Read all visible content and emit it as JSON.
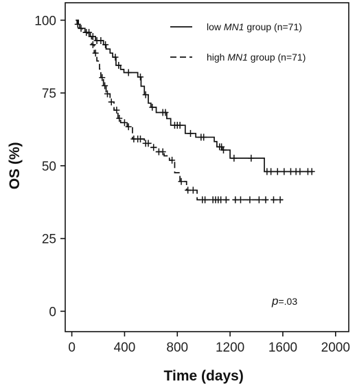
{
  "chart_data": {
    "type": "line",
    "xlabel": "Time (days)",
    "ylabel": "OS (%)",
    "xlim": [
      -50,
      2100
    ],
    "ylim": [
      -7,
      106
    ],
    "x_ticks": [
      0,
      400,
      800,
      1200,
      1600,
      2000
    ],
    "x_tick_labels": [
      "0",
      "400",
      "800",
      "1200",
      "1600",
      "2000"
    ],
    "y_ticks": [
      0,
      25,
      50,
      75,
      100
    ],
    "y_tick_labels": [
      "0",
      "25",
      "50",
      "75",
      "100"
    ],
    "legend_position": "top-right",
    "series": [
      {
        "name_prefix": "low ",
        "name_gene": "MN1",
        "name_suffix": " group (n=71)",
        "line_style": "solid",
        "steps": [
          [
            30,
            100
          ],
          [
            40,
            98.6
          ],
          [
            60,
            97.2
          ],
          [
            100,
            95.8
          ],
          [
            140,
            94.4
          ],
          [
            180,
            93.0
          ],
          [
            240,
            91.6
          ],
          [
            260,
            90.1
          ],
          [
            290,
            88.7
          ],
          [
            310,
            87.3
          ],
          [
            335,
            84.5
          ],
          [
            370,
            83.1
          ],
          [
            395,
            82.0
          ],
          [
            500,
            80.5
          ],
          [
            525,
            77.3
          ],
          [
            550,
            74.4
          ],
          [
            580,
            71.5
          ],
          [
            600,
            70.1
          ],
          [
            640,
            68.3
          ],
          [
            720,
            66.2
          ],
          [
            750,
            63.9
          ],
          [
            860,
            61.1
          ],
          [
            940,
            59.8
          ],
          [
            1080,
            58.3
          ],
          [
            1100,
            56.5
          ],
          [
            1140,
            55.4
          ],
          [
            1200,
            52.6
          ],
          [
            1460,
            48.0
          ],
          [
            1830,
            48.0
          ]
        ],
        "censor_x": [
          45,
          70,
          110,
          130,
          160,
          190,
          220,
          255,
          330,
          355,
          430,
          520,
          560,
          610,
          690,
          710,
          780,
          800,
          820,
          900,
          980,
          1000,
          1120,
          1135,
          1150,
          1230,
          1360,
          1480,
          1510,
          1560,
          1610,
          1660,
          1700,
          1730,
          1790,
          1820
        ]
      },
      {
        "name_prefix": "high ",
        "name_gene": "MN1",
        "name_suffix": " group (n=71)",
        "line_style": "dashed",
        "steps": [
          [
            30,
            100
          ],
          [
            50,
            97.2
          ],
          [
            80,
            95.8
          ],
          [
            120,
            94.4
          ],
          [
            150,
            91.6
          ],
          [
            170,
            88.7
          ],
          [
            190,
            86.0
          ],
          [
            210,
            83.2
          ],
          [
            220,
            80.3
          ],
          [
            240,
            77.5
          ],
          [
            260,
            74.7
          ],
          [
            290,
            71.9
          ],
          [
            320,
            69.1
          ],
          [
            350,
            66.3
          ],
          [
            370,
            64.8
          ],
          [
            420,
            63.4
          ],
          [
            460,
            59.2
          ],
          [
            550,
            57.7
          ],
          [
            600,
            56.3
          ],
          [
            640,
            54.8
          ],
          [
            700,
            53.4
          ],
          [
            740,
            51.9
          ],
          [
            780,
            47.6
          ],
          [
            820,
            44.6
          ],
          [
            870,
            41.6
          ],
          [
            950,
            38.3
          ],
          [
            1600,
            38.3
          ]
        ],
        "censor_x": [
          160,
          180,
          230,
          250,
          270,
          300,
          340,
          360,
          400,
          430,
          470,
          500,
          520,
          560,
          580,
          620,
          660,
          690,
          760,
          830,
          880,
          920,
          990,
          1010,
          1070,
          1090,
          1110,
          1130,
          1170,
          1240,
          1280,
          1350,
          1420,
          1470,
          1530,
          1580
        ]
      }
    ],
    "annotation": {
      "p_letter": "p",
      "p_value": "=.03"
    }
  }
}
